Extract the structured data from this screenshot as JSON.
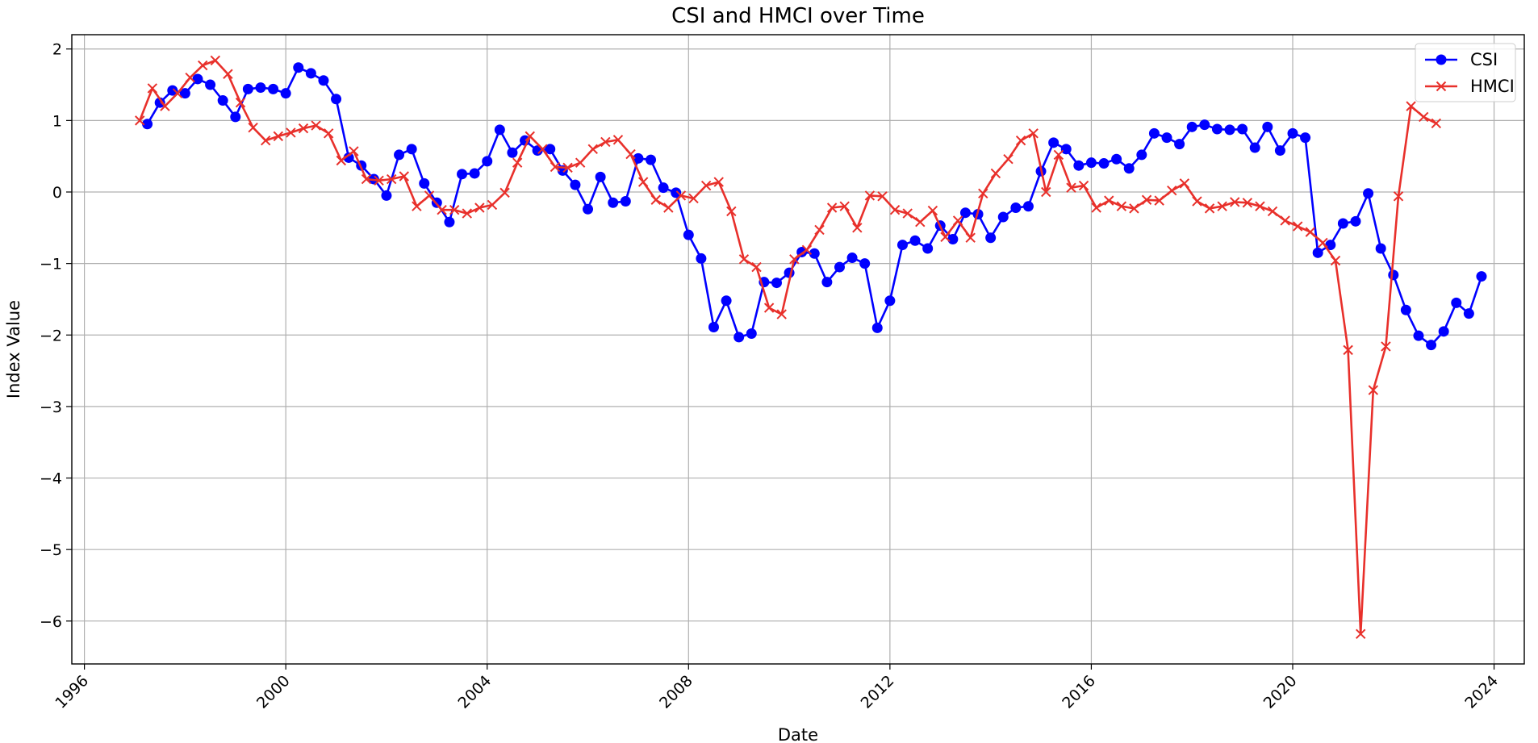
{
  "chart_data": {
    "type": "line",
    "title": "CSI and HMCI over Time",
    "xlabel": "Date",
    "ylabel": "Index Value",
    "x_ticks": [
      "1996",
      "2000",
      "2004",
      "2008",
      "2012",
      "2016",
      "2020",
      "2024"
    ],
    "x_tick_values": [
      1996,
      2000,
      2004,
      2008,
      2012,
      2016,
      2020,
      2024
    ],
    "y_ticks": [
      "2",
      "1",
      "0",
      "−1",
      "−2",
      "−3",
      "−4",
      "−5",
      "−6"
    ],
    "y_tick_values": [
      2,
      1,
      0,
      -1,
      -2,
      -3,
      -4,
      -5,
      -6
    ],
    "xlim": [
      1995.75,
      2024.6
    ],
    "ylim": [
      -6.6,
      2.2
    ],
    "grid": true,
    "legend_position": "top-right",
    "series": [
      {
        "name": "CSI",
        "color": "#0000ff",
        "marker": "circle",
        "points": [
          [
            1997.25,
            0.95
          ],
          [
            1997.5,
            1.25
          ],
          [
            1997.75,
            1.42
          ],
          [
            1998.0,
            1.38
          ],
          [
            1998.25,
            1.58
          ],
          [
            1998.5,
            1.5
          ],
          [
            1998.75,
            1.28
          ],
          [
            1999.0,
            1.05
          ],
          [
            1999.25,
            1.44
          ],
          [
            1999.5,
            1.46
          ],
          [
            1999.75,
            1.44
          ],
          [
            2000.0,
            1.38
          ],
          [
            2000.25,
            1.74
          ],
          [
            2000.5,
            1.66
          ],
          [
            2000.75,
            1.56
          ],
          [
            2001.0,
            1.3
          ],
          [
            2001.25,
            0.48
          ],
          [
            2001.5,
            0.37
          ],
          [
            2001.75,
            0.18
          ],
          [
            2002.0,
            -0.05
          ],
          [
            2002.25,
            0.52
          ],
          [
            2002.5,
            0.6
          ],
          [
            2002.75,
            0.12
          ],
          [
            2003.0,
            -0.15
          ],
          [
            2003.25,
            -0.42
          ],
          [
            2003.5,
            0.25
          ],
          [
            2003.75,
            0.26
          ],
          [
            2004.0,
            0.43
          ],
          [
            2004.25,
            0.87
          ],
          [
            2004.5,
            0.55
          ],
          [
            2004.75,
            0.72
          ],
          [
            2005.0,
            0.58
          ],
          [
            2005.25,
            0.6
          ],
          [
            2005.5,
            0.3
          ],
          [
            2005.75,
            0.1
          ],
          [
            2006.0,
            -0.24
          ],
          [
            2006.25,
            0.21
          ],
          [
            2006.5,
            -0.15
          ],
          [
            2006.75,
            -0.13
          ],
          [
            2007.0,
            0.47
          ],
          [
            2007.25,
            0.45
          ],
          [
            2007.5,
            0.06
          ],
          [
            2007.75,
            -0.01
          ],
          [
            2008.0,
            -0.6
          ],
          [
            2008.25,
            -0.93
          ],
          [
            2008.5,
            -1.89
          ],
          [
            2008.75,
            -1.52
          ],
          [
            2009.0,
            -2.03
          ],
          [
            2009.25,
            -1.98
          ],
          [
            2009.5,
            -1.26
          ],
          [
            2009.75,
            -1.27
          ],
          [
            2010.0,
            -1.13
          ],
          [
            2010.25,
            -0.84
          ],
          [
            2010.5,
            -0.86
          ],
          [
            2010.75,
            -1.26
          ],
          [
            2011.0,
            -1.05
          ],
          [
            2011.25,
            -0.92
          ],
          [
            2011.5,
            -1.0
          ],
          [
            2011.75,
            -1.9
          ],
          [
            2012.0,
            -1.52
          ],
          [
            2012.25,
            -0.74
          ],
          [
            2012.5,
            -0.68
          ],
          [
            2012.75,
            -0.79
          ],
          [
            2013.0,
            -0.47
          ],
          [
            2013.25,
            -0.66
          ],
          [
            2013.5,
            -0.29
          ],
          [
            2013.75,
            -0.31
          ],
          [
            2014.0,
            -0.64
          ],
          [
            2014.25,
            -0.35
          ],
          [
            2014.5,
            -0.22
          ],
          [
            2014.75,
            -0.2
          ],
          [
            2015.0,
            0.29
          ],
          [
            2015.25,
            0.69
          ],
          [
            2015.5,
            0.6
          ],
          [
            2015.75,
            0.37
          ],
          [
            2016.0,
            0.41
          ],
          [
            2016.25,
            0.4
          ],
          [
            2016.5,
            0.46
          ],
          [
            2016.75,
            0.33
          ],
          [
            2017.0,
            0.52
          ],
          [
            2017.25,
            0.82
          ],
          [
            2017.5,
            0.76
          ],
          [
            2017.75,
            0.67
          ],
          [
            2018.0,
            0.91
          ],
          [
            2018.25,
            0.94
          ],
          [
            2018.5,
            0.88
          ],
          [
            2018.75,
            0.87
          ],
          [
            2019.0,
            0.88
          ],
          [
            2019.25,
            0.62
          ],
          [
            2019.5,
            0.91
          ],
          [
            2019.75,
            0.58
          ],
          [
            2020.0,
            0.82
          ],
          [
            2020.25,
            0.76
          ],
          [
            2020.5,
            -0.85
          ],
          [
            2020.75,
            -0.74
          ],
          [
            2021.0,
            -0.44
          ],
          [
            2021.25,
            -0.41
          ],
          [
            2021.5,
            -0.02
          ],
          [
            2021.75,
            -0.79
          ],
          [
            2022.0,
            -1.16
          ],
          [
            2022.25,
            -1.65
          ],
          [
            2022.5,
            -2.01
          ],
          [
            2022.75,
            -2.14
          ],
          [
            2023.0,
            -1.95
          ],
          [
            2023.25,
            -1.55
          ],
          [
            2023.5,
            -1.7
          ],
          [
            2023.75,
            -1.18
          ]
        ]
      },
      {
        "name": "HMCI",
        "color": "#e8302b",
        "marker": "x",
        "points": [
          [
            1997.1,
            1.0
          ],
          [
            1997.35,
            1.45
          ],
          [
            1997.6,
            1.2
          ],
          [
            1997.85,
            1.38
          ],
          [
            1998.1,
            1.6
          ],
          [
            1998.35,
            1.77
          ],
          [
            1998.6,
            1.84
          ],
          [
            1998.85,
            1.65
          ],
          [
            1999.1,
            1.25
          ],
          [
            1999.35,
            0.9
          ],
          [
            1999.6,
            0.72
          ],
          [
            1999.85,
            0.78
          ],
          [
            2000.1,
            0.83
          ],
          [
            2000.35,
            0.89
          ],
          [
            2000.6,
            0.93
          ],
          [
            2000.85,
            0.82
          ],
          [
            2001.1,
            0.44
          ],
          [
            2001.35,
            0.57
          ],
          [
            2001.6,
            0.18
          ],
          [
            2001.85,
            0.16
          ],
          [
            2002.1,
            0.18
          ],
          [
            2002.35,
            0.22
          ],
          [
            2002.6,
            -0.2
          ],
          [
            2002.85,
            -0.05
          ],
          [
            2003.1,
            -0.25
          ],
          [
            2003.35,
            -0.25
          ],
          [
            2003.6,
            -0.3
          ],
          [
            2003.85,
            -0.22
          ],
          [
            2004.1,
            -0.18
          ],
          [
            2004.35,
            -0.01
          ],
          [
            2004.6,
            0.41
          ],
          [
            2004.85,
            0.78
          ],
          [
            2005.1,
            0.6
          ],
          [
            2005.35,
            0.35
          ],
          [
            2005.6,
            0.34
          ],
          [
            2005.85,
            0.41
          ],
          [
            2006.1,
            0.6
          ],
          [
            2006.35,
            0.7
          ],
          [
            2006.6,
            0.73
          ],
          [
            2006.85,
            0.53
          ],
          [
            2007.1,
            0.14
          ],
          [
            2007.35,
            -0.11
          ],
          [
            2007.6,
            -0.22
          ],
          [
            2007.85,
            -0.05
          ],
          [
            2008.1,
            -0.09
          ],
          [
            2008.35,
            0.09
          ],
          [
            2008.6,
            0.14
          ],
          [
            2008.85,
            -0.27
          ],
          [
            2009.1,
            -0.94
          ],
          [
            2009.35,
            -1.05
          ],
          [
            2009.6,
            -1.62
          ],
          [
            2009.85,
            -1.71
          ],
          [
            2010.1,
            -0.94
          ],
          [
            2010.35,
            -0.81
          ],
          [
            2010.6,
            -0.53
          ],
          [
            2010.85,
            -0.22
          ],
          [
            2011.1,
            -0.2
          ],
          [
            2011.35,
            -0.5
          ],
          [
            2011.6,
            -0.05
          ],
          [
            2011.85,
            -0.06
          ],
          [
            2012.1,
            -0.25
          ],
          [
            2012.35,
            -0.3
          ],
          [
            2012.6,
            -0.42
          ],
          [
            2012.85,
            -0.26
          ],
          [
            2013.1,
            -0.63
          ],
          [
            2013.35,
            -0.4
          ],
          [
            2013.6,
            -0.64
          ],
          [
            2013.85,
            -0.02
          ],
          [
            2014.1,
            0.26
          ],
          [
            2014.35,
            0.46
          ],
          [
            2014.6,
            0.72
          ],
          [
            2014.85,
            0.82
          ],
          [
            2015.1,
            0.0
          ],
          [
            2015.35,
            0.52
          ],
          [
            2015.6,
            0.06
          ],
          [
            2015.85,
            0.09
          ],
          [
            2016.1,
            -0.22
          ],
          [
            2016.35,
            -0.12
          ],
          [
            2016.6,
            -0.2
          ],
          [
            2016.85,
            -0.23
          ],
          [
            2017.1,
            -0.11
          ],
          [
            2017.35,
            -0.12
          ],
          [
            2017.6,
            0.02
          ],
          [
            2017.85,
            0.12
          ],
          [
            2018.1,
            -0.13
          ],
          [
            2018.35,
            -0.23
          ],
          [
            2018.6,
            -0.2
          ],
          [
            2018.85,
            -0.14
          ],
          [
            2019.1,
            -0.15
          ],
          [
            2019.35,
            -0.2
          ],
          [
            2019.6,
            -0.27
          ],
          [
            2019.85,
            -0.4
          ],
          [
            2020.1,
            -0.48
          ],
          [
            2020.35,
            -0.56
          ],
          [
            2020.6,
            -0.71
          ],
          [
            2020.85,
            -0.96
          ],
          [
            2021.1,
            -2.21
          ],
          [
            2021.35,
            -6.18
          ],
          [
            2021.6,
            -2.77
          ],
          [
            2021.85,
            -2.16
          ],
          [
            2022.1,
            -0.06
          ],
          [
            2022.35,
            1.2
          ],
          [
            2022.6,
            1.05
          ],
          [
            2022.85,
            0.96
          ]
        ]
      }
    ]
  }
}
